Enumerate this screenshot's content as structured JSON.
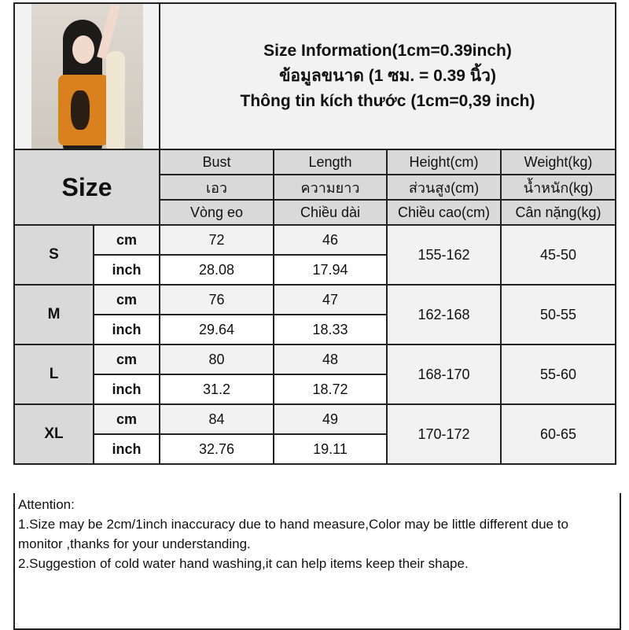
{
  "header": {
    "title_en": "Size Information(1cm=0.39inch)",
    "title_th": "ข้อมูลขนาด (1 ซม. = 0.39 นิ้ว)",
    "title_vi": "Thông tin kích thước (1cm=0,39 inch)"
  },
  "columns": {
    "size_label": "Size",
    "en": [
      "Bust",
      "Length",
      "Height(cm)",
      "Weight(kg)"
    ],
    "th": [
      "เอว",
      "ความยาว",
      "ส่วนสูง(cm)",
      "น้ำหนัก(kg)"
    ],
    "vi": [
      "Vòng eo",
      "Chiều dài",
      "Chiều cao(cm)",
      "Cân nặng(kg)"
    ]
  },
  "rows": [
    {
      "size": "S",
      "cm_label": "cm",
      "inch_label": "inch",
      "bust_cm": "72",
      "length_cm": "46",
      "bust_inch": "28.08",
      "length_inch": "17.94",
      "height": "155-162",
      "weight": "45-50"
    },
    {
      "size": "M",
      "cm_label": "cm",
      "inch_label": "inch",
      "bust_cm": "76",
      "length_cm": "47",
      "bust_inch": "29.64",
      "length_inch": "18.33",
      "height": "162-168",
      "weight": "50-55"
    },
    {
      "size": "L",
      "cm_label": "cm",
      "inch_label": "inch",
      "bust_cm": "80",
      "length_cm": "48",
      "bust_inch": "31.2",
      "length_inch": "18.72",
      "height": "168-170",
      "weight": "55-60"
    },
    {
      "size": "XL",
      "cm_label": "cm",
      "inch_label": "inch",
      "bust_cm": "84",
      "length_cm": "49",
      "bust_inch": "32.76",
      "length_inch": "19.11",
      "height": "170-172",
      "weight": "60-65"
    }
  ],
  "notes": {
    "heading": "Attention:",
    "line1": "1.Size may be 2cm/1inch inaccuracy due to hand measure,Color may be little different due to monitor ,thanks for your understanding.",
    "line2": "2.Suggestion of cold water hand washing,it can help items keep their shape."
  },
  "colors": {
    "header_gray": "#d9d9d9",
    "light_gray": "#f2f2f2",
    "shirt_orange": "#d9801f"
  }
}
